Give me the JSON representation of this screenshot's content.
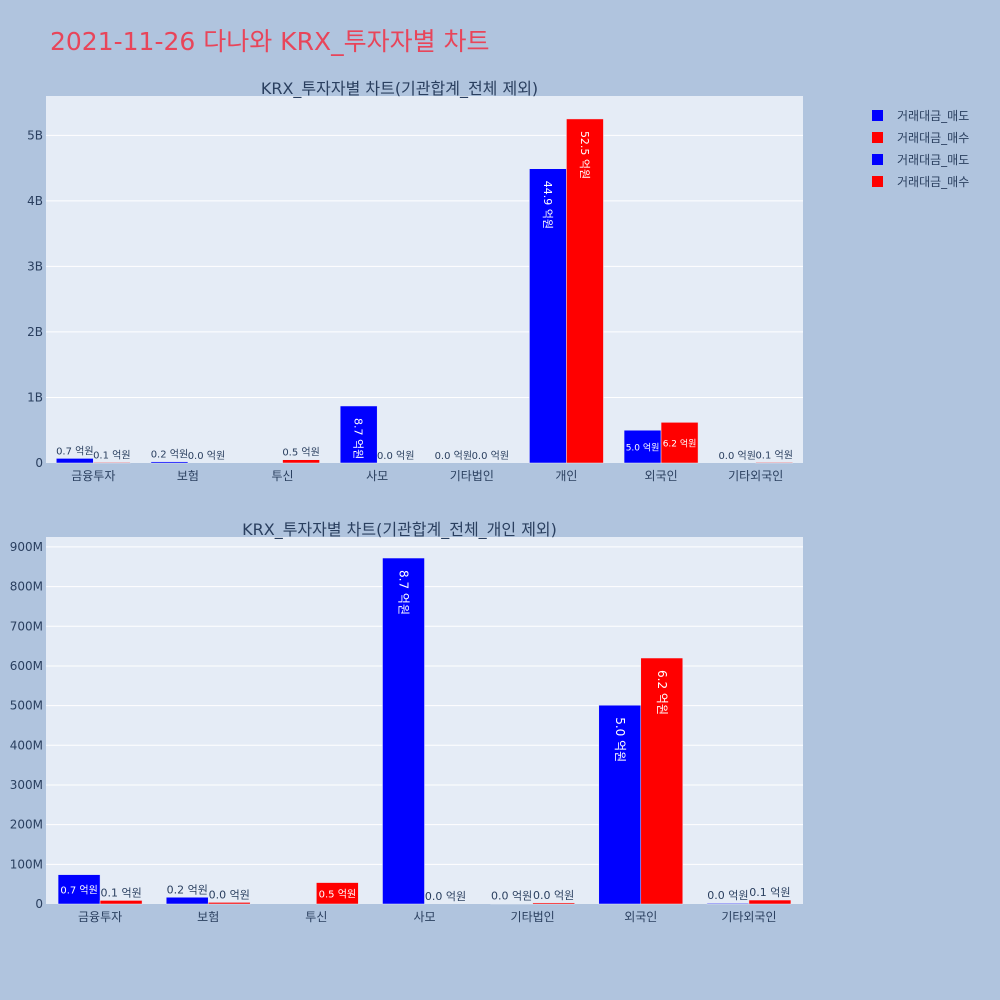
{
  "page": {
    "title": "2021-11-26 다나와 KRX_투자자별 차트"
  },
  "legend": {
    "items": [
      {
        "label": "거래대금_매도",
        "color": "#0000ff"
      },
      {
        "label": "거래대금_매수",
        "color": "#ff0000"
      },
      {
        "label": "거래대금_매도",
        "color": "#0000ff"
      },
      {
        "label": "거래대금_매수",
        "color": "#ff0000"
      }
    ]
  },
  "chart_data": [
    {
      "type": "bar",
      "title": "KRX_투자자별 차트(기관합계_전체 제외)",
      "categories": [
        "금융투자",
        "보험",
        "투신",
        "사모",
        "기타법인",
        "개인",
        "외국인",
        "기타외국인"
      ],
      "series": [
        {
          "name": "거래대금_매도",
          "color": "#0000ff",
          "values": [
            70000000,
            20000000,
            0,
            870000000,
            0,
            4490000000,
            500000000,
            0
          ],
          "labels": [
            "0.7 억원",
            "0.2 억원",
            "",
            "8.7 억원",
            "0.0 억원",
            "44.9 억원",
            "5.0 억원",
            "0.0 억원"
          ]
        },
        {
          "name": "거래대금_매수",
          "color": "#ff0000",
          "values": [
            10000000,
            0,
            50000000,
            0,
            0,
            5250000000,
            620000000,
            10000000
          ],
          "labels": [
            "0.1 억원",
            "0.0 억원",
            "0.5 억원",
            "0.0 억원",
            "0.0 억원",
            "52.5 억원",
            "6.2 억원",
            "0.1 억원"
          ]
        }
      ],
      "ylim": [
        0,
        5600000000
      ],
      "yticks": [
        0,
        1000000000,
        2000000000,
        3000000000,
        4000000000,
        5000000000
      ],
      "ytick_labels": [
        "0",
        "1B",
        "2B",
        "3B",
        "4B",
        "5B"
      ],
      "grid": true
    },
    {
      "type": "bar",
      "title": "KRX_투자자별 차트(기관합계_전체_개인 제외)",
      "categories": [
        "금융투자",
        "보험",
        "투신",
        "사모",
        "기타법인",
        "외국인",
        "기타외국인"
      ],
      "series": [
        {
          "name": "거래대금_매도",
          "color": "#0000ff",
          "values": [
            74000000,
            17000000,
            0,
            872000000,
            1000000,
            501000000,
            2000000
          ],
          "labels": [
            "0.7 억원",
            "0.2 억원",
            "",
            "8.7 억원",
            "0.0 억원",
            "5.0 억원",
            "0.0 억원"
          ]
        },
        {
          "name": "거래대금_매수",
          "color": "#ff0000",
          "values": [
            9000000,
            4000000,
            54000000,
            0,
            3000000,
            620000000,
            10000000
          ],
          "labels": [
            "0.1 억원",
            "0.0 억원",
            "0.5 억원",
            "0.0 억원",
            "0.0 억원",
            "6.2 억원",
            "0.1 억원"
          ]
        }
      ],
      "ylim": [
        0,
        925000000
      ],
      "yticks": [
        0,
        100000000,
        200000000,
        300000000,
        400000000,
        500000000,
        600000000,
        700000000,
        800000000,
        900000000
      ],
      "ytick_labels": [
        "0",
        "100M",
        "200M",
        "300M",
        "400M",
        "500M",
        "600M",
        "700M",
        "800M",
        "900M"
      ],
      "grid": true
    }
  ]
}
